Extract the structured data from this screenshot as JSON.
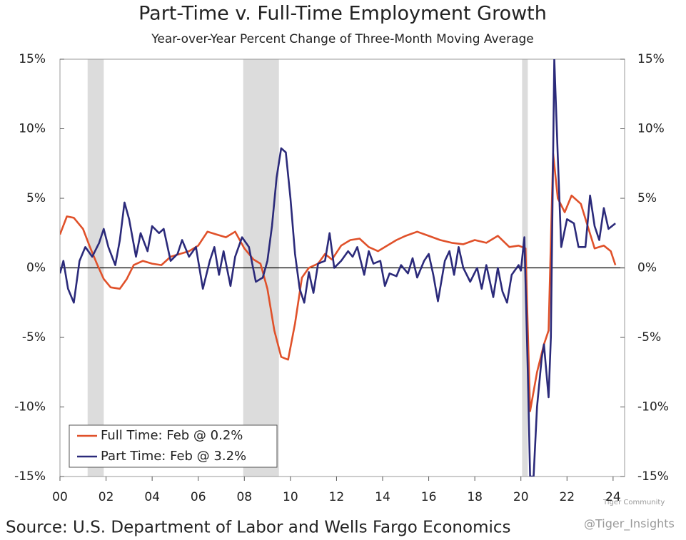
{
  "chart_data": {
    "type": "line",
    "title": "Part-Time v. Full-Time Employment Growth",
    "subtitle": "Year-over-Year Percent Change of Three-Month Moving Average",
    "source": "Source: U.S. Department of Labor and Wells Fargo Economics",
    "annotations": [
      "Tiger Community",
      "@Tiger_Insights"
    ],
    "legend": "lower left",
    "xlim": [
      2000,
      2024.5
    ],
    "xticks": [
      {
        "value": 2000,
        "label": "00"
      },
      {
        "value": 2002,
        "label": "02"
      },
      {
        "value": 2004,
        "label": "04"
      },
      {
        "value": 2006,
        "label": "06"
      },
      {
        "value": 2008,
        "label": "08"
      },
      {
        "value": 2010,
        "label": "10"
      },
      {
        "value": 2012,
        "label": "12"
      },
      {
        "value": 2014,
        "label": "14"
      },
      {
        "value": 2016,
        "label": "16"
      },
      {
        "value": 2018,
        "label": "18"
      },
      {
        "value": 2020,
        "label": "20"
      },
      {
        "value": 2022,
        "label": "22"
      },
      {
        "value": 2024,
        "label": "24"
      }
    ],
    "ylim": [
      -15,
      15
    ],
    "yticks": [
      {
        "value": -15,
        "label": "-15%"
      },
      {
        "value": -10,
        "label": "-10%"
      },
      {
        "value": -5,
        "label": "-5%"
      },
      {
        "value": 0,
        "label": "0%"
      },
      {
        "value": 5,
        "label": "5%"
      },
      {
        "value": 10,
        "label": "10%"
      },
      {
        "value": 15,
        "label": "15%"
      }
    ],
    "y2lim": [
      -15,
      15
    ],
    "y2ticks": [
      {
        "value": -15,
        "label": "-15%"
      },
      {
        "value": -10,
        "label": "-10%"
      },
      {
        "value": -5,
        "label": "-5%"
      },
      {
        "value": 0,
        "label": "0%"
      },
      {
        "value": 5,
        "label": "5%"
      },
      {
        "value": 10,
        "label": "10%"
      },
      {
        "value": 15,
        "label": "15%"
      }
    ],
    "shaded_regions": [
      [
        2001.2,
        2001.9
      ],
      [
        2007.95,
        2009.5
      ],
      [
        2020.05,
        2020.3
      ]
    ],
    "shade_color": "#dcdcdc",
    "series": [
      {
        "name": "Full Time: Feb @ 0.2%",
        "color": "#e0512a",
        "x": [
          2000.0,
          2000.3,
          2000.6,
          2001.0,
          2001.3,
          2001.6,
          2001.9,
          2002.2,
          2002.6,
          2002.9,
          2003.2,
          2003.6,
          2004.0,
          2004.4,
          2004.8,
          2005.2,
          2005.6,
          2006.0,
          2006.4,
          2006.8,
          2007.2,
          2007.6,
          2008.0,
          2008.4,
          2008.7,
          2009.0,
          2009.3,
          2009.6,
          2009.9,
          2010.2,
          2010.5,
          2010.8,
          2011.2,
          2011.5,
          2011.8,
          2012.2,
          2012.6,
          2013.0,
          2013.4,
          2013.8,
          2014.2,
          2014.6,
          2015.0,
          2015.5,
          2016.0,
          2016.5,
          2017.0,
          2017.5,
          2018.0,
          2018.5,
          2019.0,
          2019.5,
          2019.9,
          2020.2,
          2020.4,
          2020.7,
          2021.0,
          2021.2,
          2021.4,
          2021.6,
          2021.9,
          2022.2,
          2022.6,
          2022.9,
          2023.2,
          2023.6,
          2023.9,
          2024.1
        ],
        "values": [
          2.4,
          3.7,
          3.6,
          2.8,
          1.5,
          0.3,
          -0.8,
          -1.4,
          -1.5,
          -0.8,
          0.2,
          0.5,
          0.3,
          0.2,
          0.8,
          1.0,
          1.2,
          1.6,
          2.6,
          2.4,
          2.2,
          2.6,
          1.4,
          0.6,
          0.3,
          -1.5,
          -4.5,
          -6.4,
          -6.6,
          -4.0,
          -0.7,
          0.0,
          0.3,
          1.0,
          0.6,
          1.6,
          2.0,
          2.1,
          1.5,
          1.2,
          1.6,
          2.0,
          2.3,
          2.6,
          2.3,
          2.0,
          1.8,
          1.7,
          2.0,
          1.8,
          2.3,
          1.5,
          1.6,
          1.4,
          -10.3,
          -7.5,
          -5.5,
          -4.5,
          8.2,
          5.0,
          4.0,
          5.2,
          4.6,
          3.0,
          1.4,
          1.6,
          1.2,
          0.2
        ]
      },
      {
        "name": "Part Time: Feb @ 3.2%",
        "color": "#2b2a7a",
        "x": [
          2000.0,
          2000.15,
          2000.35,
          2000.6,
          2000.85,
          2001.1,
          2001.4,
          2001.7,
          2001.9,
          2002.1,
          2002.4,
          2002.6,
          2002.8,
          2003.0,
          2003.3,
          2003.5,
          2003.8,
          2004.0,
          2004.3,
          2004.5,
          2004.8,
          2005.1,
          2005.3,
          2005.6,
          2005.9,
          2006.2,
          2006.5,
          2006.7,
          2006.9,
          2007.1,
          2007.4,
          2007.6,
          2007.9,
          2008.2,
          2008.5,
          2008.8,
          2009.0,
          2009.2,
          2009.4,
          2009.6,
          2009.8,
          2010.0,
          2010.2,
          2010.4,
          2010.6,
          2010.8,
          2011.0,
          2011.2,
          2011.5,
          2011.7,
          2011.9,
          2012.2,
          2012.5,
          2012.7,
          2012.9,
          2013.2,
          2013.4,
          2013.6,
          2013.9,
          2014.1,
          2014.3,
          2014.6,
          2014.8,
          2015.1,
          2015.3,
          2015.5,
          2015.8,
          2016.0,
          2016.2,
          2016.4,
          2016.7,
          2016.9,
          2017.1,
          2017.3,
          2017.5,
          2017.8,
          2018.1,
          2018.3,
          2018.5,
          2018.8,
          2019.0,
          2019.2,
          2019.4,
          2019.6,
          2019.9,
          2020.0,
          2020.15,
          2020.3,
          2020.4,
          2020.55,
          2020.7,
          2020.9,
          2021.0,
          2021.2,
          2021.3,
          2021.45,
          2021.6,
          2021.75,
          2022.0,
          2022.3,
          2022.5,
          2022.8,
          2023.0,
          2023.2,
          2023.4,
          2023.6,
          2023.8,
          2024.1
        ],
        "values": [
          -0.4,
          0.5,
          -1.5,
          -2.5,
          0.5,
          1.5,
          0.8,
          1.8,
          2.8,
          1.5,
          0.2,
          2.0,
          4.7,
          3.5,
          0.8,
          2.5,
          1.2,
          3.0,
          2.5,
          2.8,
          0.5,
          1.0,
          2.0,
          0.8,
          1.5,
          -1.5,
          0.5,
          1.5,
          -0.5,
          1.2,
          -1.3,
          0.8,
          2.2,
          1.5,
          -1.0,
          -0.7,
          0.5,
          3.0,
          6.5,
          8.6,
          8.3,
          5.0,
          1.0,
          -1.5,
          -2.5,
          -0.3,
          -1.8,
          0.3,
          0.5,
          2.5,
          0.0,
          0.5,
          1.2,
          0.8,
          1.5,
          -0.5,
          1.2,
          0.3,
          0.5,
          -1.3,
          -0.4,
          -0.6,
          0.2,
          -0.4,
          0.7,
          -0.7,
          0.5,
          1.0,
          -0.5,
          -2.4,
          0.5,
          1.2,
          -0.5,
          1.5,
          0.0,
          -1.0,
          0.0,
          -1.5,
          0.2,
          -2.1,
          0.0,
          -1.7,
          -2.5,
          -0.5,
          0.2,
          -0.2,
          2.2,
          -7.5,
          -15,
          -15,
          -10,
          -6.5,
          -5.5,
          -9.3,
          -5,
          15,
          8,
          1.5,
          3.5,
          3.2,
          1.5,
          1.5,
          5.2,
          3.0,
          2.0,
          4.3,
          2.8,
          3.2
        ]
      }
    ]
  }
}
